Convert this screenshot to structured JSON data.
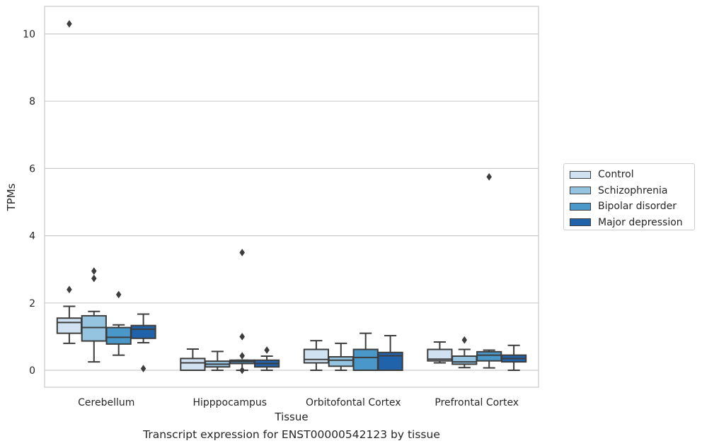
{
  "chart_data": {
    "type": "box",
    "title": "",
    "caption": "Transcript expression for ENST00000542123 by tissue",
    "xlabel": "Tissue",
    "ylabel": "TPMs",
    "ylim": [
      -0.5,
      10.8
    ],
    "yticks": [
      0,
      2,
      4,
      6,
      8,
      10
    ],
    "grid": "horizontal",
    "legend_placement": "outside-right",
    "categories": [
      "Cerebellum",
      "Hipppocampus",
      "Orbitofontal Cortex",
      "Prefrontal Cortex"
    ],
    "series": [
      {
        "name": "Control",
        "color": "#d0e1f2",
        "boxes": [
          {
            "whislo": 0.8,
            "q1": 1.1,
            "med": 1.42,
            "q3": 1.55,
            "whishi": 1.9,
            "fliers": [
              2.4,
              10.3
            ]
          },
          {
            "whislo": 0.0,
            "q1": 0.0,
            "med": 0.22,
            "q3": 0.35,
            "whishi": 0.63,
            "fliers": []
          },
          {
            "whislo": 0.0,
            "q1": 0.22,
            "med": 0.32,
            "q3": 0.62,
            "whishi": 0.88,
            "fliers": []
          },
          {
            "whislo": 0.22,
            "q1": 0.28,
            "med": 0.33,
            "q3": 0.62,
            "whishi": 0.84,
            "fliers": []
          }
        ]
      },
      {
        "name": "Schizophrenia",
        "color": "#94c4df",
        "boxes": [
          {
            "whislo": 0.25,
            "q1": 0.87,
            "med": 1.27,
            "q3": 1.62,
            "whishi": 1.75,
            "fliers": [
              2.73,
              2.95
            ]
          },
          {
            "whislo": 0.0,
            "q1": 0.1,
            "med": 0.18,
            "q3": 0.27,
            "whishi": 0.56,
            "fliers": []
          },
          {
            "whislo": 0.0,
            "q1": 0.12,
            "med": 0.3,
            "q3": 0.4,
            "whishi": 0.8,
            "fliers": []
          },
          {
            "whislo": 0.08,
            "q1": 0.18,
            "med": 0.25,
            "q3": 0.42,
            "whishi": 0.62,
            "fliers": [
              0.9
            ]
          }
        ]
      },
      {
        "name": "Bipolar disorder",
        "color": "#4a98c9",
        "boxes": [
          {
            "whislo": 0.45,
            "q1": 0.78,
            "med": 0.98,
            "q3": 1.27,
            "whishi": 1.35,
            "fliers": [
              2.25
            ]
          },
          {
            "whislo": 0.0,
            "q1": 0.2,
            "med": 0.26,
            "q3": 0.3,
            "whishi": 0.3,
            "fliers": [
              3.5,
              1.0,
              0.43,
              0.0
            ]
          },
          {
            "whislo": 0.0,
            "q1": 0.0,
            "med": 0.38,
            "q3": 0.62,
            "whishi": 1.1,
            "fliers": []
          },
          {
            "whislo": 0.07,
            "q1": 0.28,
            "med": 0.45,
            "q3": 0.55,
            "whishi": 0.6,
            "fliers": [
              5.75
            ]
          }
        ]
      },
      {
        "name": "Major depression",
        "color": "#2163aa",
        "boxes": [
          {
            "whislo": 0.82,
            "q1": 0.95,
            "med": 1.22,
            "q3": 1.33,
            "whishi": 1.67,
            "fliers": [
              0.05
            ]
          },
          {
            "whislo": 0.0,
            "q1": 0.1,
            "med": 0.2,
            "q3": 0.3,
            "whishi": 0.42,
            "fliers": [
              0.6
            ]
          },
          {
            "whislo": 0.0,
            "q1": 0.0,
            "med": 0.43,
            "q3": 0.53,
            "whishi": 1.03,
            "fliers": []
          },
          {
            "whislo": 0.0,
            "q1": 0.25,
            "med": 0.35,
            "q3": 0.45,
            "whishi": 0.74,
            "fliers": []
          }
        ]
      }
    ]
  }
}
